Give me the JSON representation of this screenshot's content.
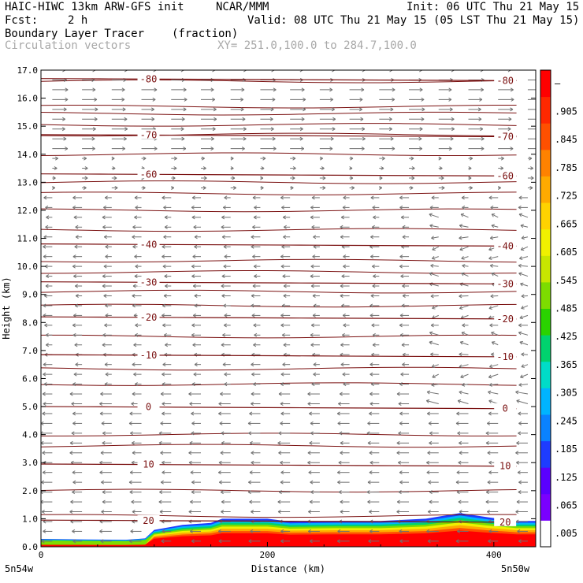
{
  "header": {
    "title": "HAIC-HIWC 13km ARW-GFS init",
    "org": "NCAR/MMM",
    "init": "Init: 06 UTC Thu 21 May 15",
    "fcst_label": "Fcst:",
    "fcst_value": "2 h",
    "valid": "Valid: 08 UTC Thu 21 May 15 (05 LST Thu 21 May 15)",
    "field": "Boundary Layer Tracer",
    "units": "(fraction)",
    "overlay": "Circulation vectors",
    "xy": "XY= 251.0,100.0 to 284.7,100.0"
  },
  "chart_data": {
    "type": "heatmap",
    "xlabel": "Distance (km)",
    "ylabel": "Height (km)",
    "xlim": [
      0,
      437
    ],
    "ylim": [
      0,
      17
    ],
    "x_ticks": [
      0,
      200,
      400
    ],
    "x_tick_labels": [
      "0",
      "200",
      "400"
    ],
    "y_ticks": [
      0,
      1,
      2,
      3,
      4,
      5,
      6,
      7,
      8,
      9,
      10,
      11,
      12,
      13,
      14,
      15,
      16,
      17
    ],
    "y_tick_labels": [
      "0.0",
      "1.0",
      "2.0",
      "3.0",
      "4.0",
      "5.0",
      "6.0",
      "7.0",
      "8.0",
      "9.0",
      "10.0",
      "11.0",
      "12.0",
      "13.0",
      "14.0",
      "15.0",
      "16.0",
      "17.0"
    ],
    "endpoint_left": "5n54w",
    "endpoint_right": "5n50w",
    "colorbar": {
      "labels": [
        ".005",
        ".065",
        ".125",
        ".185",
        ".245",
        ".305",
        ".365",
        ".425",
        ".485",
        ".545",
        ".605",
        ".665",
        ".725",
        ".785",
        ".845",
        ".905",
        "–"
      ],
      "colors": [
        "#ffffff",
        "#7a00ff",
        "#5a00ff",
        "#1e3cff",
        "#0a82ff",
        "#00b4ff",
        "#00dcc8",
        "#00d26e",
        "#2ad200",
        "#7ddc00",
        "#c8e600",
        "#f0f000",
        "#ffd200",
        "#ffaa00",
        "#ff8200",
        "#ff5000",
        "#ff2800",
        "#ff0000"
      ]
    },
    "tracer_top_km": [
      [
        0,
        0.28
      ],
      [
        40,
        0.26
      ],
      [
        75,
        0.25
      ],
      [
        92,
        0.3
      ],
      [
        100,
        0.6
      ],
      [
        125,
        0.78
      ],
      [
        150,
        0.85
      ],
      [
        160,
        1.0
      ],
      [
        200,
        1.0
      ],
      [
        220,
        0.9
      ],
      [
        260,
        0.92
      ],
      [
        300,
        0.92
      ],
      [
        340,
        1.0
      ],
      [
        370,
        1.2
      ],
      [
        395,
        1.05
      ],
      [
        420,
        0.92
      ],
      [
        437,
        0.92
      ]
    ],
    "temperature_contours": [
      {
        "value": -80,
        "label": "-80",
        "y_km": 16.7
      },
      {
        "value": -70,
        "label": "-70",
        "y_km": 14.7
      },
      {
        "value": -60,
        "label": "-60",
        "y_km": 13.3
      },
      {
        "value": -40,
        "label": "-40",
        "y_km": 10.8
      },
      {
        "value": -30,
        "label": "-30",
        "y_km": 9.45
      },
      {
        "value": -20,
        "label": "-20",
        "y_km": 8.2
      },
      {
        "value": -10,
        "label": "-10",
        "y_km": 6.85
      },
      {
        "value": 0,
        "label": "0",
        "y_km": 5.0
      },
      {
        "value": 10,
        "label": "10",
        "y_km": 2.95
      },
      {
        "value": 20,
        "label": "20",
        "y_km": 0.95
      }
    ],
    "theta_lines_km": [
      16.6,
      15.7,
      15.45,
      15.05,
      14.7,
      14.0,
      13.0,
      12.6,
      12.0,
      11.3,
      10.2,
      9.8,
      9.1,
      8.6,
      7.5,
      6.35,
      5.8,
      4.0,
      3.6,
      2.0,
      1.1
    ]
  }
}
